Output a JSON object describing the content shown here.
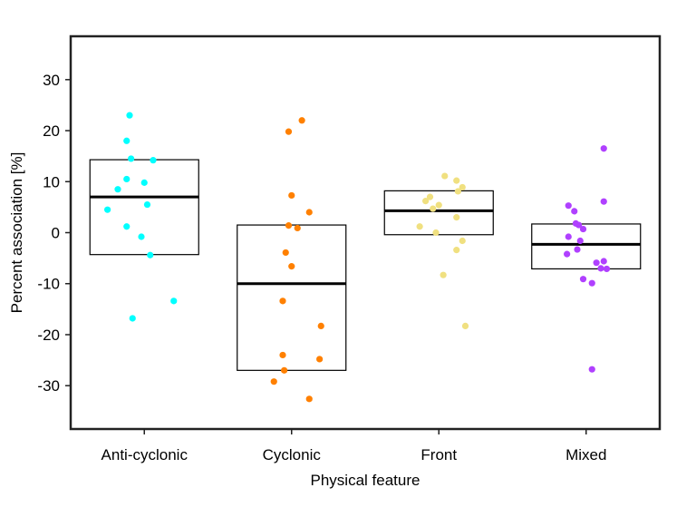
{
  "chart_data": {
    "type": "scatter",
    "xlabel": "Physical feature",
    "ylabel": "Percent association [%]",
    "ylim": [
      -38.5,
      38.5
    ],
    "yticks": [
      -30,
      -20,
      -10,
      0,
      10,
      20,
      30
    ],
    "grid": false,
    "categories": [
      "Anti-cyclonic",
      "Cyclonic",
      "Front",
      "Mixed"
    ],
    "series": [
      {
        "category": "Anti-cyclonic",
        "color": "#00ffff",
        "box": {
          "q1": -4.3,
          "median": 7.0,
          "q3": 14.3
        },
        "points": [
          {
            "j": -0.1,
            "y": 23.0
          },
          {
            "j": -0.12,
            "y": 18.0
          },
          {
            "j": -0.09,
            "y": 14.5
          },
          {
            "j": 0.06,
            "y": 14.2
          },
          {
            "j": -0.12,
            "y": 10.5
          },
          {
            "j": 0.0,
            "y": 9.8
          },
          {
            "j": -0.18,
            "y": 8.5
          },
          {
            "j": 0.02,
            "y": 5.5
          },
          {
            "j": -0.25,
            "y": 4.5
          },
          {
            "j": -0.12,
            "y": 1.2
          },
          {
            "j": -0.02,
            "y": -0.8
          },
          {
            "j": 0.04,
            "y": -4.4
          },
          {
            "j": 0.2,
            "y": -13.4
          },
          {
            "j": -0.08,
            "y": -16.8
          }
        ]
      },
      {
        "category": "Cyclonic",
        "color": "#ff8000",
        "box": {
          "q1": -27.0,
          "median": -10.0,
          "q3": 1.5
        },
        "points": [
          {
            "j": 0.07,
            "y": 22.0
          },
          {
            "j": -0.02,
            "y": 19.8
          },
          {
            "j": 0.0,
            "y": 7.3
          },
          {
            "j": 0.12,
            "y": 4.0
          },
          {
            "j": -0.02,
            "y": 1.4
          },
          {
            "j": 0.04,
            "y": 0.9
          },
          {
            "j": -0.04,
            "y": -3.9
          },
          {
            "j": 0.0,
            "y": -6.6
          },
          {
            "j": -0.06,
            "y": -13.4
          },
          {
            "j": 0.2,
            "y": -18.3
          },
          {
            "j": -0.06,
            "y": -24.0
          },
          {
            "j": 0.19,
            "y": -24.8
          },
          {
            "j": -0.05,
            "y": -27.0
          },
          {
            "j": -0.12,
            "y": -29.2
          },
          {
            "j": 0.12,
            "y": -32.6
          }
        ]
      },
      {
        "category": "Front",
        "color": "#f0e080",
        "box": {
          "q1": -0.4,
          "median": 4.3,
          "q3": 8.2
        },
        "points": [
          {
            "j": 0.04,
            "y": 11.1
          },
          {
            "j": 0.12,
            "y": 10.2
          },
          {
            "j": 0.16,
            "y": 8.9
          },
          {
            "j": 0.13,
            "y": 8.1
          },
          {
            "j": -0.06,
            "y": 7.0
          },
          {
            "j": -0.09,
            "y": 6.2
          },
          {
            "j": 0.0,
            "y": 5.4
          },
          {
            "j": -0.04,
            "y": 4.7
          },
          {
            "j": 0.12,
            "y": 3.0
          },
          {
            "j": -0.13,
            "y": 1.2
          },
          {
            "j": -0.02,
            "y": 0.0
          },
          {
            "j": 0.16,
            "y": -1.6
          },
          {
            "j": 0.12,
            "y": -3.4
          },
          {
            "j": 0.03,
            "y": -8.3
          },
          {
            "j": 0.18,
            "y": -18.3
          }
        ]
      },
      {
        "category": "Mixed",
        "color": "#b040ff",
        "box": {
          "q1": -7.1,
          "median": -2.3,
          "q3": 1.7
        },
        "points": [
          {
            "j": 0.12,
            "y": 16.5
          },
          {
            "j": 0.12,
            "y": 6.1
          },
          {
            "j": -0.12,
            "y": 5.3
          },
          {
            "j": -0.08,
            "y": 4.2
          },
          {
            "j": -0.07,
            "y": 1.8
          },
          {
            "j": -0.05,
            "y": 1.5
          },
          {
            "j": -0.02,
            "y": 0.7
          },
          {
            "j": -0.12,
            "y": -0.8
          },
          {
            "j": -0.04,
            "y": -1.6
          },
          {
            "j": -0.06,
            "y": -3.3
          },
          {
            "j": -0.13,
            "y": -4.2
          },
          {
            "j": 0.12,
            "y": -5.6
          },
          {
            "j": 0.07,
            "y": -5.9
          },
          {
            "j": 0.1,
            "y": -7.0
          },
          {
            "j": 0.14,
            "y": -7.1
          },
          {
            "j": -0.02,
            "y": -9.1
          },
          {
            "j": 0.04,
            "y": -9.9
          },
          {
            "j": 0.04,
            "y": -26.8
          }
        ]
      }
    ]
  }
}
